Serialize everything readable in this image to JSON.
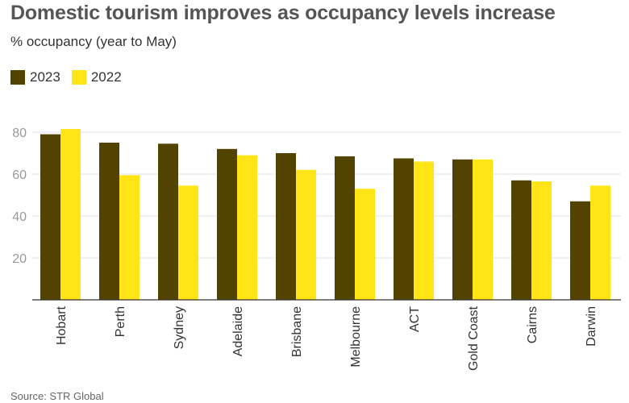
{
  "header": {
    "title": "Domestic tourism improves as occupancy levels increase",
    "subtitle": "% occupancy (year to May)"
  },
  "footer": {
    "source": "Source: STR Global"
  },
  "colors": {
    "series_2023": "#524300",
    "series_2022": "#FFE416",
    "grid": "#E0E0E0",
    "axis": "#333333",
    "tick": "#999999"
  },
  "chart_data": {
    "type": "bar",
    "title": "Domestic tourism improves as occupancy levels increase",
    "ylabel": "% occupancy (year to May)",
    "xlabel": "",
    "categories": [
      "Hobart",
      "Perth",
      "Sydney",
      "Adelaide",
      "Brisbane",
      "Melbourne",
      "ACT",
      "Gold Coast",
      "Cairns",
      "Darwin"
    ],
    "series": [
      {
        "name": "2023",
        "values": [
          79,
          75,
          74.5,
          72,
          70,
          68.5,
          67.5,
          67,
          57,
          47
        ]
      },
      {
        "name": "2022",
        "values": [
          81.5,
          59.5,
          54.5,
          69,
          62,
          53,
          66,
          67,
          56.5,
          54.5
        ]
      }
    ],
    "ylim": [
      0,
      80
    ],
    "yticks": [
      "20",
      "40",
      "60",
      "80"
    ],
    "grid": true,
    "legend_position": "top-left"
  }
}
